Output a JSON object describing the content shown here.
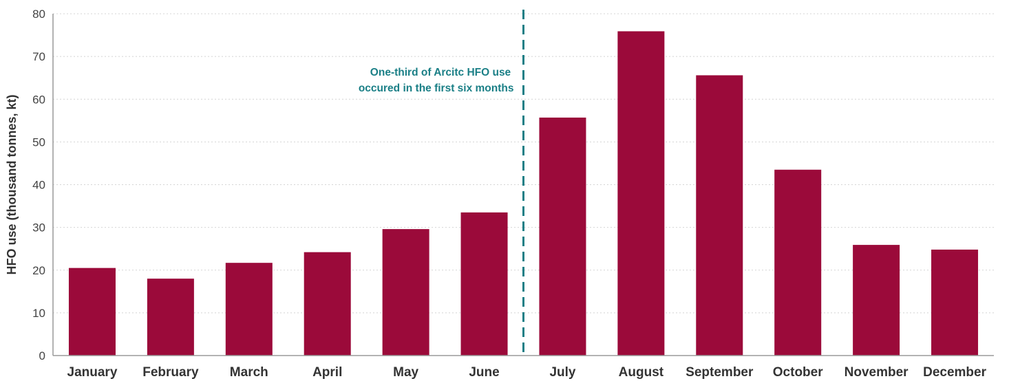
{
  "chart_data": {
    "type": "bar",
    "title": "",
    "xlabel": "",
    "ylabel": "HFO use (thousand tonnes, kt)",
    "ylim": [
      0,
      80
    ],
    "yticks": [
      0,
      10,
      20,
      30,
      40,
      50,
      60,
      70,
      80
    ],
    "grid": true,
    "categories": [
      "January",
      "February",
      "March",
      "April",
      "May",
      "June",
      "July",
      "August",
      "September",
      "October",
      "November",
      "December"
    ],
    "values": [
      20.5,
      18,
      21.7,
      24.2,
      29.6,
      33.5,
      55.7,
      75.9,
      65.6,
      43.5,
      25.9,
      24.8
    ],
    "annotation": {
      "lines": [
        "One-third of Arcitc HFO use",
        "occured in the first six months"
      ],
      "divider_between": [
        "June",
        "July"
      ]
    },
    "colors": {
      "bar": "#9b0a3a",
      "annotation": "#1a7f86",
      "grid": "#d4d4d4",
      "axis": "#999999"
    }
  }
}
